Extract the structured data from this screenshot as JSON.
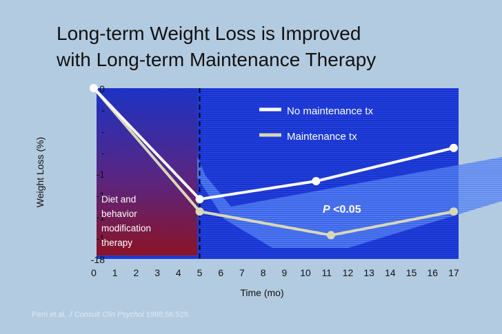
{
  "title": {
    "line1": "Long-term Weight Loss is Improved",
    "line2": "with Long-term Maintenance Therapy"
  },
  "citation": {
    "authors": "Perri et al, ",
    "journal": "J Consult Clin Psychol",
    "details": " 1988;56:529."
  },
  "colors": {
    "background": "#b3cbe0",
    "plot_area": "#1430c8",
    "no_maintenance": "#ffffff",
    "maintenance": "#d8d8b8",
    "therapy_box": "#8a1a2a"
  },
  "annotations": {
    "therapy_box": [
      "Diet and",
      "behavior",
      "modification",
      "therapy"
    ],
    "p_value_italic": "P",
    "p_value_rest": " <0.05"
  },
  "chart_data": {
    "type": "line",
    "title": "Long-term Weight Loss is Improved with Long-term Maintenance Therapy",
    "xlabel": "Time (mo)",
    "ylabel": "Weight Loss (%)",
    "x_ticks": [
      0,
      1,
      2,
      3,
      4,
      5,
      6,
      7,
      8,
      9,
      10,
      11,
      12,
      13,
      14,
      15,
      16,
      17
    ],
    "y_tick_labels": [
      "0",
      "-",
      "-",
      "-",
      "-1",
      "-1",
      "-1",
      "-1",
      "-18"
    ],
    "xlim": [
      0,
      17
    ],
    "ylim": [
      -18,
      0
    ],
    "legend_position": "top-right",
    "grid": false,
    "series": [
      {
        "name": "No maintenance tx",
        "x": [
          0,
          5,
          10.5,
          17
        ],
        "y": [
          0,
          -11.7,
          -9.8,
          -6.3
        ]
      },
      {
        "name": "Maintenance tx",
        "x": [
          0,
          5,
          11.2,
          17
        ],
        "y": [
          0,
          -13,
          -15.5,
          -13
        ]
      }
    ],
    "vertical_marker_x": 5
  }
}
